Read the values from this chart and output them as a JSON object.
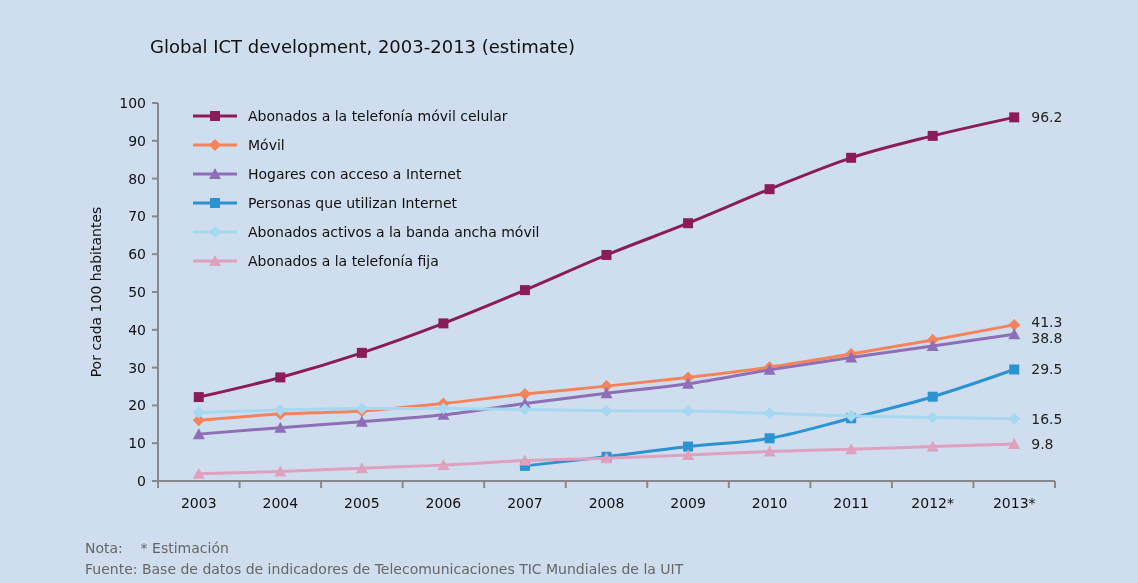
{
  "chart_data": {
    "type": "line",
    "title": "Global ICT development, 2003-2013 (estimate)",
    "ylabel": "Por cada 100 habitantes",
    "categories": [
      "2003",
      "2004",
      "2005",
      "2006",
      "2007",
      "2008",
      "2009",
      "2010",
      "2011",
      "2012*",
      "2013*"
    ],
    "ylim": [
      0,
      100
    ],
    "yticks": [
      0,
      10,
      20,
      30,
      40,
      50,
      60,
      70,
      80,
      90,
      100
    ],
    "grid": false,
    "legend": "top left",
    "series": [
      {
        "name": "Abonados a la telefonía móvil celular",
        "color": "#8b1c5c",
        "marker": "square",
        "values": [
          22.2,
          27.4,
          33.9,
          41.7,
          50.5,
          59.8,
          68.2,
          77.2,
          85.5,
          91.3,
          96.2
        ],
        "value_labels": [
          null,
          null,
          null,
          null,
          null,
          null,
          null,
          null,
          null,
          null,
          "96.2"
        ]
      },
      {
        "name": "Móvil",
        "color": "#f4835a",
        "marker": "diamond",
        "values": [
          16.1,
          17.7,
          18.5,
          20.5,
          23.0,
          25.1,
          27.4,
          30.1,
          33.6,
          37.3,
          41.3
        ],
        "value_labels": [
          null,
          null,
          null,
          null,
          null,
          null,
          null,
          null,
          null,
          null,
          "41.3"
        ]
      },
      {
        "name": "Hogares con acceso a Internet",
        "color": "#8e6fb5",
        "marker": "triangle",
        "values": [
          12.4,
          14.1,
          15.7,
          17.5,
          20.5,
          23.2,
          25.7,
          29.4,
          32.7,
          35.7,
          38.8
        ],
        "value_labels": [
          null,
          null,
          null,
          null,
          null,
          null,
          null,
          null,
          null,
          null,
          "38.8"
        ]
      },
      {
        "name": "Personas que utilizan Internet",
        "color": "#2b93d1",
        "marker": "square",
        "values": [
          null,
          null,
          null,
          null,
          4.0,
          6.4,
          9.1,
          11.3,
          16.6,
          22.3,
          29.5
        ],
        "value_labels": [
          null,
          null,
          null,
          null,
          null,
          null,
          null,
          null,
          null,
          null,
          "29.5"
        ]
      },
      {
        "name": "Abonados activos a la banda ancha móvil",
        "color": "#a6d8f2",
        "marker": "diamond",
        "values": [
          18.1,
          18.8,
          19.2,
          19.2,
          18.9,
          18.6,
          18.5,
          17.9,
          17.2,
          16.8,
          16.5
        ],
        "value_labels": [
          null,
          null,
          null,
          null,
          null,
          null,
          null,
          null,
          null,
          null,
          "16.5"
        ]
      },
      {
        "name": "Abonados a la telefonía fija",
        "color": "#dea2be",
        "marker": "triangle",
        "values": [
          1.9,
          2.5,
          3.4,
          4.2,
          5.4,
          6.0,
          6.9,
          7.8,
          8.4,
          9.1,
          9.8
        ],
        "value_labels": [
          null,
          null,
          null,
          null,
          null,
          null,
          null,
          null,
          null,
          null,
          "9.8"
        ]
      }
    ],
    "annotations": [
      "Nota:    * Estimación",
      "Fuente: Base de datos de indicadores de Telecomunicaciones TIC Mundiales de la UIT"
    ]
  }
}
